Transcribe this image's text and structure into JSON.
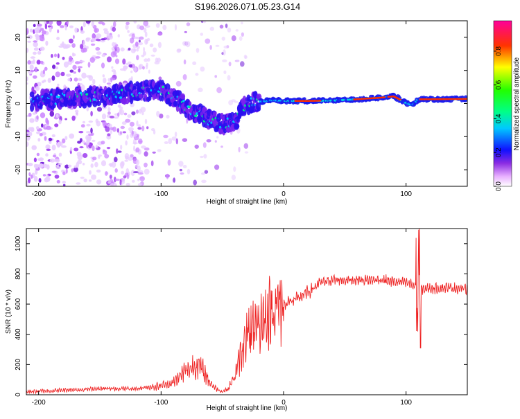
{
  "title": "S196.2026.071.05.23.G14",
  "chart_data": [
    {
      "type": "heatmap",
      "name": "spectrogram",
      "xlabel": "Height of straight line (km)",
      "ylabel": "Frequency (Hz)",
      "xlim": [
        -210,
        150
      ],
      "ylim": [
        -25,
        25
      ],
      "xticks": [
        -200,
        -100,
        0,
        100
      ],
      "yticks": [
        -20,
        -10,
        0,
        10,
        20
      ],
      "ridge": {
        "x": [
          -200,
          -180,
          -160,
          -140,
          -120,
          -100,
          -90,
          -80,
          -70,
          -60,
          -50,
          -40,
          -35,
          -30,
          -20,
          -10,
          0,
          10,
          20,
          40,
          60,
          80,
          90,
          95,
          100,
          105,
          110,
          120,
          150
        ],
        "y": [
          1,
          1.5,
          2,
          2.5,
          3.5,
          4,
          2,
          -1,
          -3,
          -5,
          -6,
          -6,
          -2,
          0,
          0.5,
          1,
          0.8,
          0.8,
          0.8,
          0.9,
          1.3,
          1.8,
          2.2,
          1.2,
          0.2,
          -0.5,
          1.3,
          1.3,
          1.4
        ]
      },
      "colorbar": {
        "label": "Normalized spectral amplitude",
        "ticks": [
          "0.0",
          "0.2",
          "0.4",
          "0.6",
          "0.8"
        ],
        "colors": [
          "#ffffff",
          "#ff66ff",
          "#0000ff",
          "#00e6ff",
          "#00ff00",
          "#ffff00",
          "#ff0000",
          "#ff0099"
        ]
      }
    },
    {
      "type": "line",
      "name": "snr",
      "xlabel": "Height of straight line (km)",
      "ylabel": "SNR (10 * v/v)",
      "xlim": [
        -210,
        150
      ],
      "ylim": [
        0,
        1100
      ],
      "xticks": [
        -200,
        -100,
        0,
        100
      ],
      "yticks": [
        0,
        200,
        400,
        600,
        800,
        1000
      ],
      "color": "#ee2222",
      "envelope": {
        "x": [
          -210,
          -180,
          -150,
          -120,
          -100,
          -90,
          -80,
          -70,
          -65,
          -60,
          -55,
          -50,
          -45,
          -40,
          -35,
          -30,
          -25,
          -20,
          -15,
          -10,
          -5,
          0,
          10,
          20,
          30,
          40,
          60,
          80,
          100,
          108,
          110,
          112,
          116,
          130,
          150
        ],
        "y": [
          20,
          30,
          40,
          40,
          60,
          80,
          160,
          200,
          150,
          80,
          40,
          20,
          40,
          120,
          260,
          380,
          450,
          480,
          520,
          560,
          580,
          600,
          630,
          680,
          740,
          760,
          760,
          760,
          740,
          720,
          700,
          700,
          700,
          710,
          700
        ]
      }
    }
  ]
}
